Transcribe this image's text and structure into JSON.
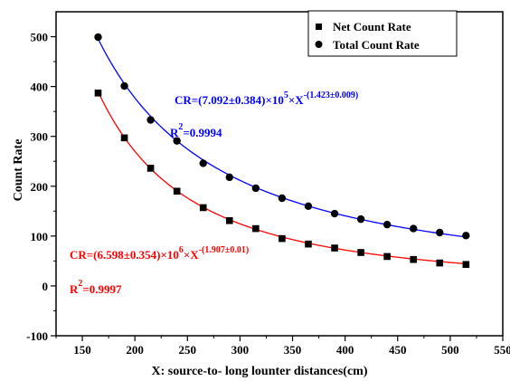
{
  "chart_data": {
    "type": "scatter",
    "title": "",
    "xlabel": "X: source-to- long lounter distances(cm)",
    "ylabel": "Count Rate",
    "xlim": [
      125,
      550
    ],
    "ylim": [
      -100,
      550
    ],
    "xticks": [
      150,
      200,
      250,
      300,
      350,
      400,
      450,
      500,
      550
    ],
    "yticks": [
      -100,
      0,
      100,
      200,
      300,
      400,
      500
    ],
    "grid": false,
    "legend_position": "top-right",
    "x": [
      165,
      190,
      215,
      240,
      265,
      290,
      315,
      340,
      365,
      390,
      415,
      440,
      465,
      490,
      515
    ],
    "series": [
      {
        "name": "Net Count Rate",
        "marker": "square",
        "color": "#000000",
        "fit_color": "#ff0000",
        "fit": {
          "a": 6598000,
          "b": 1.907
        },
        "values": [
          387,
          297,
          236,
          190,
          157,
          131,
          115,
          95,
          84,
          76,
          67,
          59,
          53,
          46,
          43
        ]
      },
      {
        "name": "Total Count Rate",
        "marker": "circle",
        "color": "#000000",
        "fit_color": "#0000ff",
        "fit": {
          "a": 709200,
          "b": 1.423
        },
        "values": [
          499,
          401,
          333,
          291,
          246,
          218,
          196,
          176,
          160,
          145,
          134,
          123,
          115,
          107,
          101
        ]
      }
    ],
    "annotations": [
      {
        "color": "#0000ff",
        "line1": {
          "base": "CR=(7.092±0.384)×10",
          "sup": "5",
          "mid": "×X",
          "exp": "-(1.423±0.009)"
        },
        "line2": {
          "base": "R",
          "sup": "2",
          "rest": "=0.9994"
        }
      },
      {
        "color": "#ff0000",
        "line1": {
          "base": "CR=(6.598±0.354)×10",
          "sup": "6",
          "mid": "×X",
          "exp": "-(1.907±0.01)"
        },
        "line2": {
          "base": "R",
          "sup": "2",
          "rest": "=0.9997"
        }
      }
    ]
  }
}
